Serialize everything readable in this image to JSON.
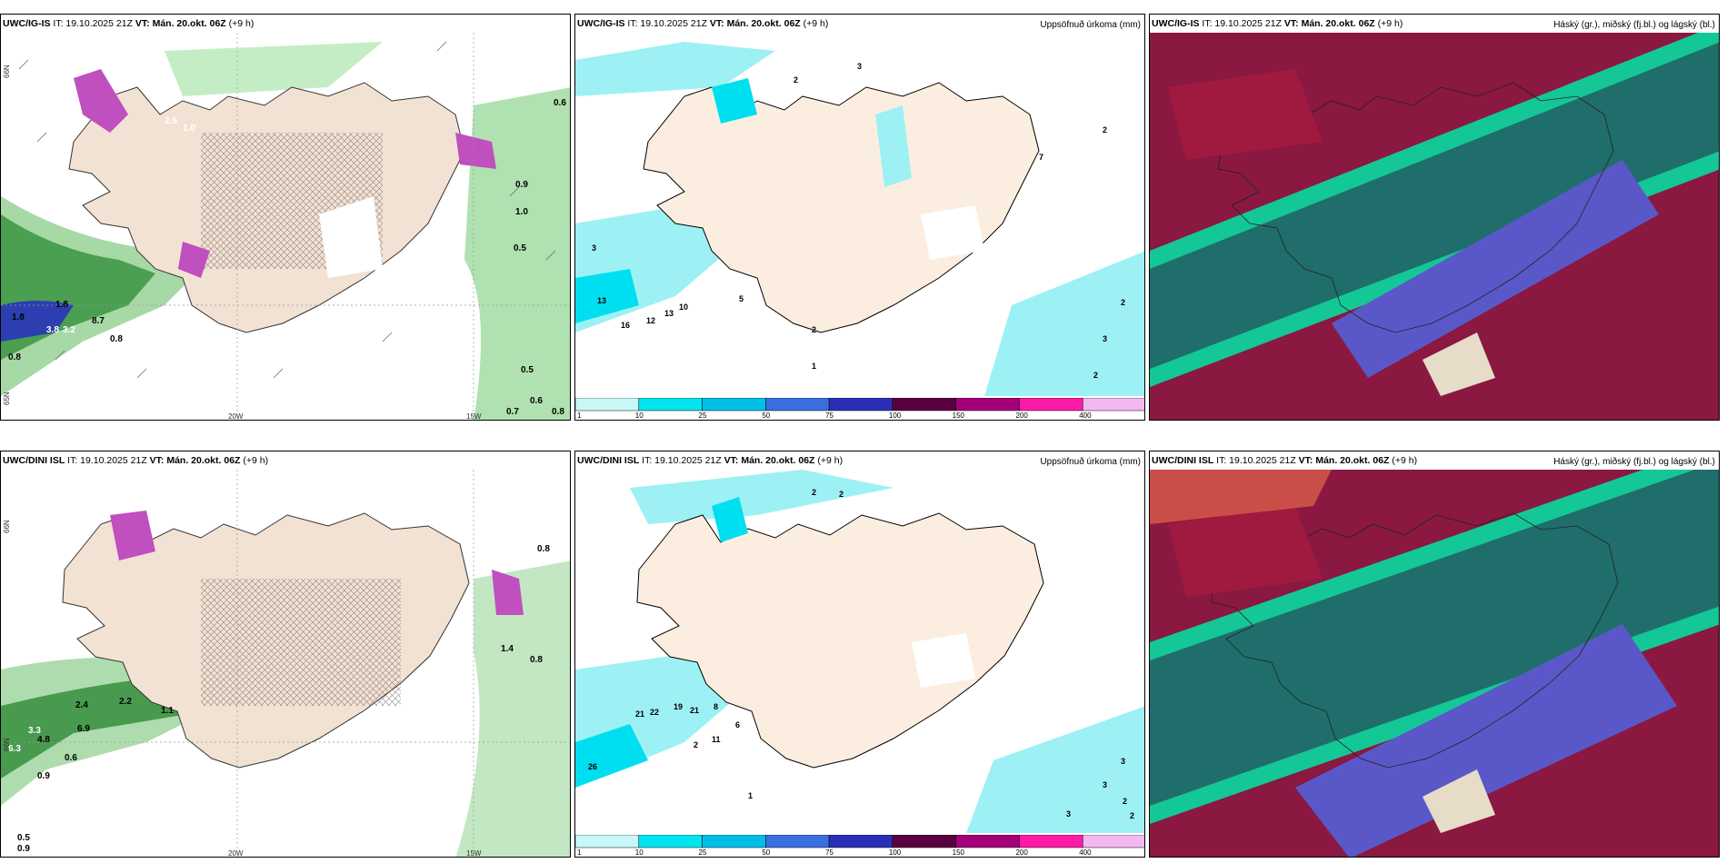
{
  "panels": {
    "ig_precip": {
      "model": "UWC/IG-IS",
      "it": "IT: 19.10.2025 21Z",
      "vt": "VT: Mán. 20.okt. 06Z",
      "lead": "(+9 h)",
      "values": [
        "0.6",
        "1.8",
        "3.8",
        "3.2",
        "8.7",
        "0.8",
        "0.8",
        "1.8",
        "0.5",
        "0.5",
        "0.6",
        "0.8",
        "0.7",
        "2.5",
        "1.0",
        "0.9",
        "1.0"
      ]
    },
    "ig_accum": {
      "model": "UWC/IG-IS",
      "it": "IT: 19.10.2025 21Z",
      "vt": "VT: Mán. 20.okt. 06Z",
      "lead": "(+9 h)",
      "title": "Uppsöfnuð úrkoma (mm)",
      "values": [
        "3",
        "2",
        "3",
        "16",
        "13",
        "12",
        "13",
        "10",
        "5",
        "2",
        "1",
        "7",
        "2",
        "2",
        "3",
        "2"
      ]
    },
    "ig_cloud": {
      "model": "UWC/IG-IS",
      "it": "IT: 19.10.2025 21Z",
      "vt": "VT: Mán. 20.okt. 06Z",
      "lead": "(+9 h)",
      "title": "Háský (gr.), miðský (fj.bl.) og lágský (bl.)"
    },
    "dini_precip": {
      "model": "UWC/DINI ISL",
      "it": "IT: 19.10.2025 21Z",
      "vt": "VT: Mán. 20.okt. 06Z",
      "lead": "(+9 h)",
      "values": [
        "0.8",
        "3.3",
        "6.3",
        "4.8",
        "0.9",
        "0.6",
        "2.4",
        "6.9",
        "2.2",
        "1.1",
        "0.5",
        "0.9",
        "0.8",
        "1.4"
      ]
    },
    "dini_accum": {
      "model": "UWC/DINI ISL",
      "it": "IT: 19.10.2025 21Z",
      "vt": "VT: Mán. 20.okt. 06Z",
      "lead": "(+9 h)",
      "title": "Uppsöfnuð úrkoma (mm)",
      "values": [
        "2",
        "2",
        "26",
        "21",
        "22",
        "19",
        "21",
        "11",
        "8",
        "6",
        "2",
        "1",
        "3",
        "3",
        "2",
        "3",
        "2"
      ]
    },
    "dini_cloud": {
      "model": "UWC/DINI ISL",
      "it": "IT: 19.10.2025 21Z",
      "vt": "VT: Mán. 20.okt. 06Z",
      "lead": "(+9 h)",
      "title": "Háský (gr.), miðský (fj.bl.) og lágský (bl.)"
    }
  },
  "axis": {
    "lat": "66N",
    "lon20": "20W",
    "lon15": "15W",
    "lat2": "65N"
  },
  "legend": {
    "ticks": [
      "1",
      "10",
      "25",
      "50",
      "75",
      "100",
      "150",
      "200",
      "400"
    ],
    "colors": [
      "#c8f7f7",
      "#00e5ee",
      "#00bfe6",
      "#3a6fe0",
      "#2b2fb8",
      "#5a0040",
      "#a3007a",
      "#ff1aa8",
      "#f4b8f0"
    ]
  }
}
